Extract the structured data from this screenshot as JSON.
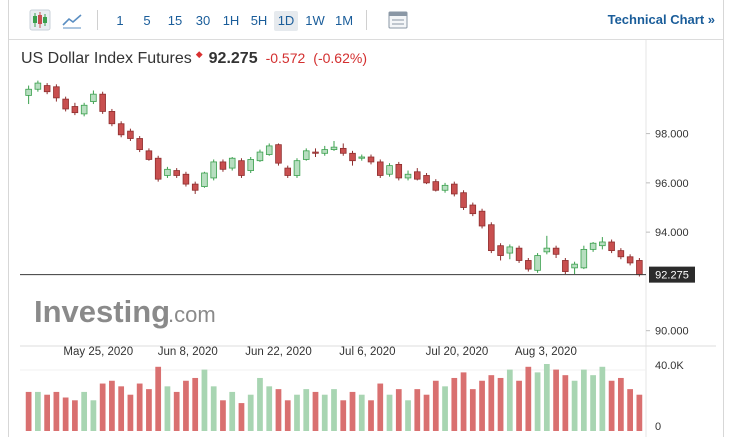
{
  "toolbar": {
    "timeframes": [
      "1",
      "5",
      "15",
      "30",
      "1H",
      "5H",
      "1D",
      "1W",
      "1M"
    ],
    "active_timeframe": "1D",
    "technical_link": "Technical Chart »"
  },
  "header": {
    "instrument": "US Dollar Index Futures",
    "price": "92.275",
    "change": "-0.572",
    "change_pct": "(-0.62%)"
  },
  "watermark": {
    "brand": "Investing",
    "suffix": ".com"
  },
  "colors": {
    "up": "#b7dec0",
    "up_border": "#3aa04d",
    "down": "#c84f4f",
    "vol_up": "#a8d5b2",
    "vol_down": "#d97070",
    "accent": "#1a5d9a"
  },
  "chart_data": {
    "type": "candlestick",
    "title": "US Dollar Index Futures",
    "x_ticks": [
      "May 25, 2020",
      "Jun 8, 2020",
      "Jun 22, 2020",
      "Jul 6, 2020",
      "Jul 20, 2020",
      "Aug 3, 2020"
    ],
    "y_ticks": [
      "98.000",
      "96.000",
      "94.000",
      "90.000"
    ],
    "ylim": [
      89.5,
      100.5
    ],
    "last_price_label": "92.275",
    "last_price": 92.275,
    "volume_ticks": [
      "40.0K",
      "0"
    ],
    "candles": [
      [
        99.55,
        99.8,
        99.2,
        99.95
      ],
      [
        99.8,
        100.05,
        99.7,
        100.15
      ],
      [
        99.95,
        99.7,
        99.6,
        100.05
      ],
      [
        99.9,
        99.45,
        99.3,
        100.0
      ],
      [
        99.4,
        99.0,
        98.9,
        99.5
      ],
      [
        99.1,
        98.85,
        98.75,
        99.25
      ],
      [
        98.8,
        99.15,
        98.7,
        99.25
      ],
      [
        99.3,
        99.6,
        99.2,
        99.75
      ],
      [
        99.6,
        98.9,
        98.8,
        99.7
      ],
      [
        98.9,
        98.4,
        98.3,
        99.0
      ],
      [
        98.4,
        97.95,
        97.85,
        98.5
      ],
      [
        98.1,
        97.8,
        97.7,
        98.2
      ],
      [
        97.8,
        97.35,
        97.25,
        97.9
      ],
      [
        97.3,
        96.95,
        96.9,
        97.4
      ],
      [
        97.0,
        96.15,
        96.05,
        97.1
      ],
      [
        96.3,
        96.55,
        96.2,
        96.65
      ],
      [
        96.5,
        96.3,
        96.2,
        96.6
      ],
      [
        96.35,
        95.95,
        95.85,
        96.45
      ],
      [
        95.95,
        95.7,
        95.55,
        96.05
      ],
      [
        95.85,
        96.4,
        95.8,
        96.45
      ],
      [
        96.2,
        96.85,
        96.1,
        96.95
      ],
      [
        96.85,
        96.55,
        96.45,
        96.95
      ],
      [
        96.6,
        97.0,
        96.5,
        97.05
      ],
      [
        96.9,
        96.3,
        96.2,
        97.0
      ],
      [
        96.5,
        96.95,
        96.4,
        97.05
      ],
      [
        96.9,
        97.25,
        96.85,
        97.35
      ],
      [
        97.15,
        97.5,
        97.1,
        97.6
      ],
      [
        97.55,
        96.8,
        96.7,
        97.6
      ],
      [
        96.6,
        96.3,
        96.2,
        96.7
      ],
      [
        96.3,
        96.9,
        96.2,
        97.0
      ],
      [
        96.95,
        97.3,
        96.9,
        97.4
      ],
      [
        97.25,
        97.2,
        97.05,
        97.4
      ],
      [
        97.2,
        97.35,
        97.1,
        97.5
      ],
      [
        97.35,
        97.45,
        97.3,
        97.7
      ],
      [
        97.4,
        97.2,
        97.1,
        97.6
      ],
      [
        97.2,
        96.9,
        96.7,
        97.3
      ],
      [
        97.0,
        97.05,
        96.9,
        97.15
      ],
      [
        97.05,
        96.85,
        96.75,
        97.15
      ],
      [
        96.85,
        96.3,
        96.2,
        96.95
      ],
      [
        96.35,
        96.7,
        96.25,
        96.8
      ],
      [
        96.75,
        96.2,
        96.1,
        96.85
      ],
      [
        96.2,
        96.35,
        96.1,
        96.5
      ],
      [
        96.45,
        96.15,
        96.1,
        96.6
      ],
      [
        96.3,
        96.0,
        95.95,
        96.4
      ],
      [
        96.05,
        95.7,
        95.65,
        96.15
      ],
      [
        95.7,
        95.9,
        95.6,
        96.0
      ],
      [
        95.95,
        95.55,
        95.45,
        96.05
      ],
      [
        95.6,
        95.0,
        94.9,
        95.7
      ],
      [
        95.1,
        94.75,
        94.65,
        95.2
      ],
      [
        94.85,
        94.25,
        94.15,
        94.95
      ],
      [
        94.3,
        93.25,
        93.15,
        94.4
      ],
      [
        93.45,
        93.05,
        92.85,
        93.55
      ],
      [
        93.15,
        93.4,
        92.9,
        93.5
      ],
      [
        93.35,
        92.85,
        92.75,
        93.45
      ],
      [
        92.85,
        92.5,
        92.4,
        92.95
      ],
      [
        92.45,
        93.05,
        92.35,
        93.15
      ],
      [
        93.2,
        93.35,
        93.1,
        93.85
      ],
      [
        93.35,
        93.1,
        92.95,
        93.45
      ],
      [
        92.85,
        92.4,
        92.3,
        92.95
      ],
      [
        92.55,
        92.7,
        92.3,
        92.8
      ],
      [
        92.55,
        93.3,
        92.5,
        93.45
      ],
      [
        93.3,
        93.55,
        93.2,
        93.6
      ],
      [
        93.45,
        93.6,
        93.3,
        93.8
      ],
      [
        93.6,
        93.25,
        93.15,
        93.7
      ],
      [
        93.25,
        93.0,
        92.9,
        93.35
      ],
      [
        93.0,
        92.75,
        92.65,
        93.1
      ],
      [
        92.85,
        92.275,
        92.2,
        92.95
      ]
    ],
    "volumes": [
      28,
      28,
      26,
      28,
      24,
      22,
      28,
      22,
      34,
      36,
      32,
      26,
      34,
      30,
      46,
      32,
      28,
      36,
      38,
      44,
      32,
      22,
      28,
      20,
      26,
      38,
      32,
      30,
      22,
      26,
      30,
      28,
      26,
      30,
      22,
      28,
      26,
      22,
      34,
      26,
      30,
      22,
      30,
      26,
      36,
      32,
      38,
      42,
      30,
      36,
      40,
      38,
      44,
      36,
      46,
      42,
      48,
      44,
      40,
      36,
      44,
      40,
      46,
      36,
      38,
      30,
      26
    ],
    "volume_up": [
      false,
      true,
      false,
      false,
      false,
      false,
      true,
      true,
      false,
      false,
      false,
      false,
      false,
      false,
      false,
      true,
      false,
      false,
      false,
      true,
      true,
      false,
      true,
      false,
      true,
      true,
      true,
      false,
      false,
      true,
      true,
      false,
      true,
      true,
      false,
      false,
      true,
      false,
      false,
      true,
      false,
      true,
      false,
      false,
      false,
      true,
      false,
      false,
      false,
      false,
      false,
      false,
      true,
      false,
      false,
      true,
      true,
      false,
      false,
      true,
      true,
      true,
      true,
      false,
      false,
      false,
      false
    ]
  }
}
